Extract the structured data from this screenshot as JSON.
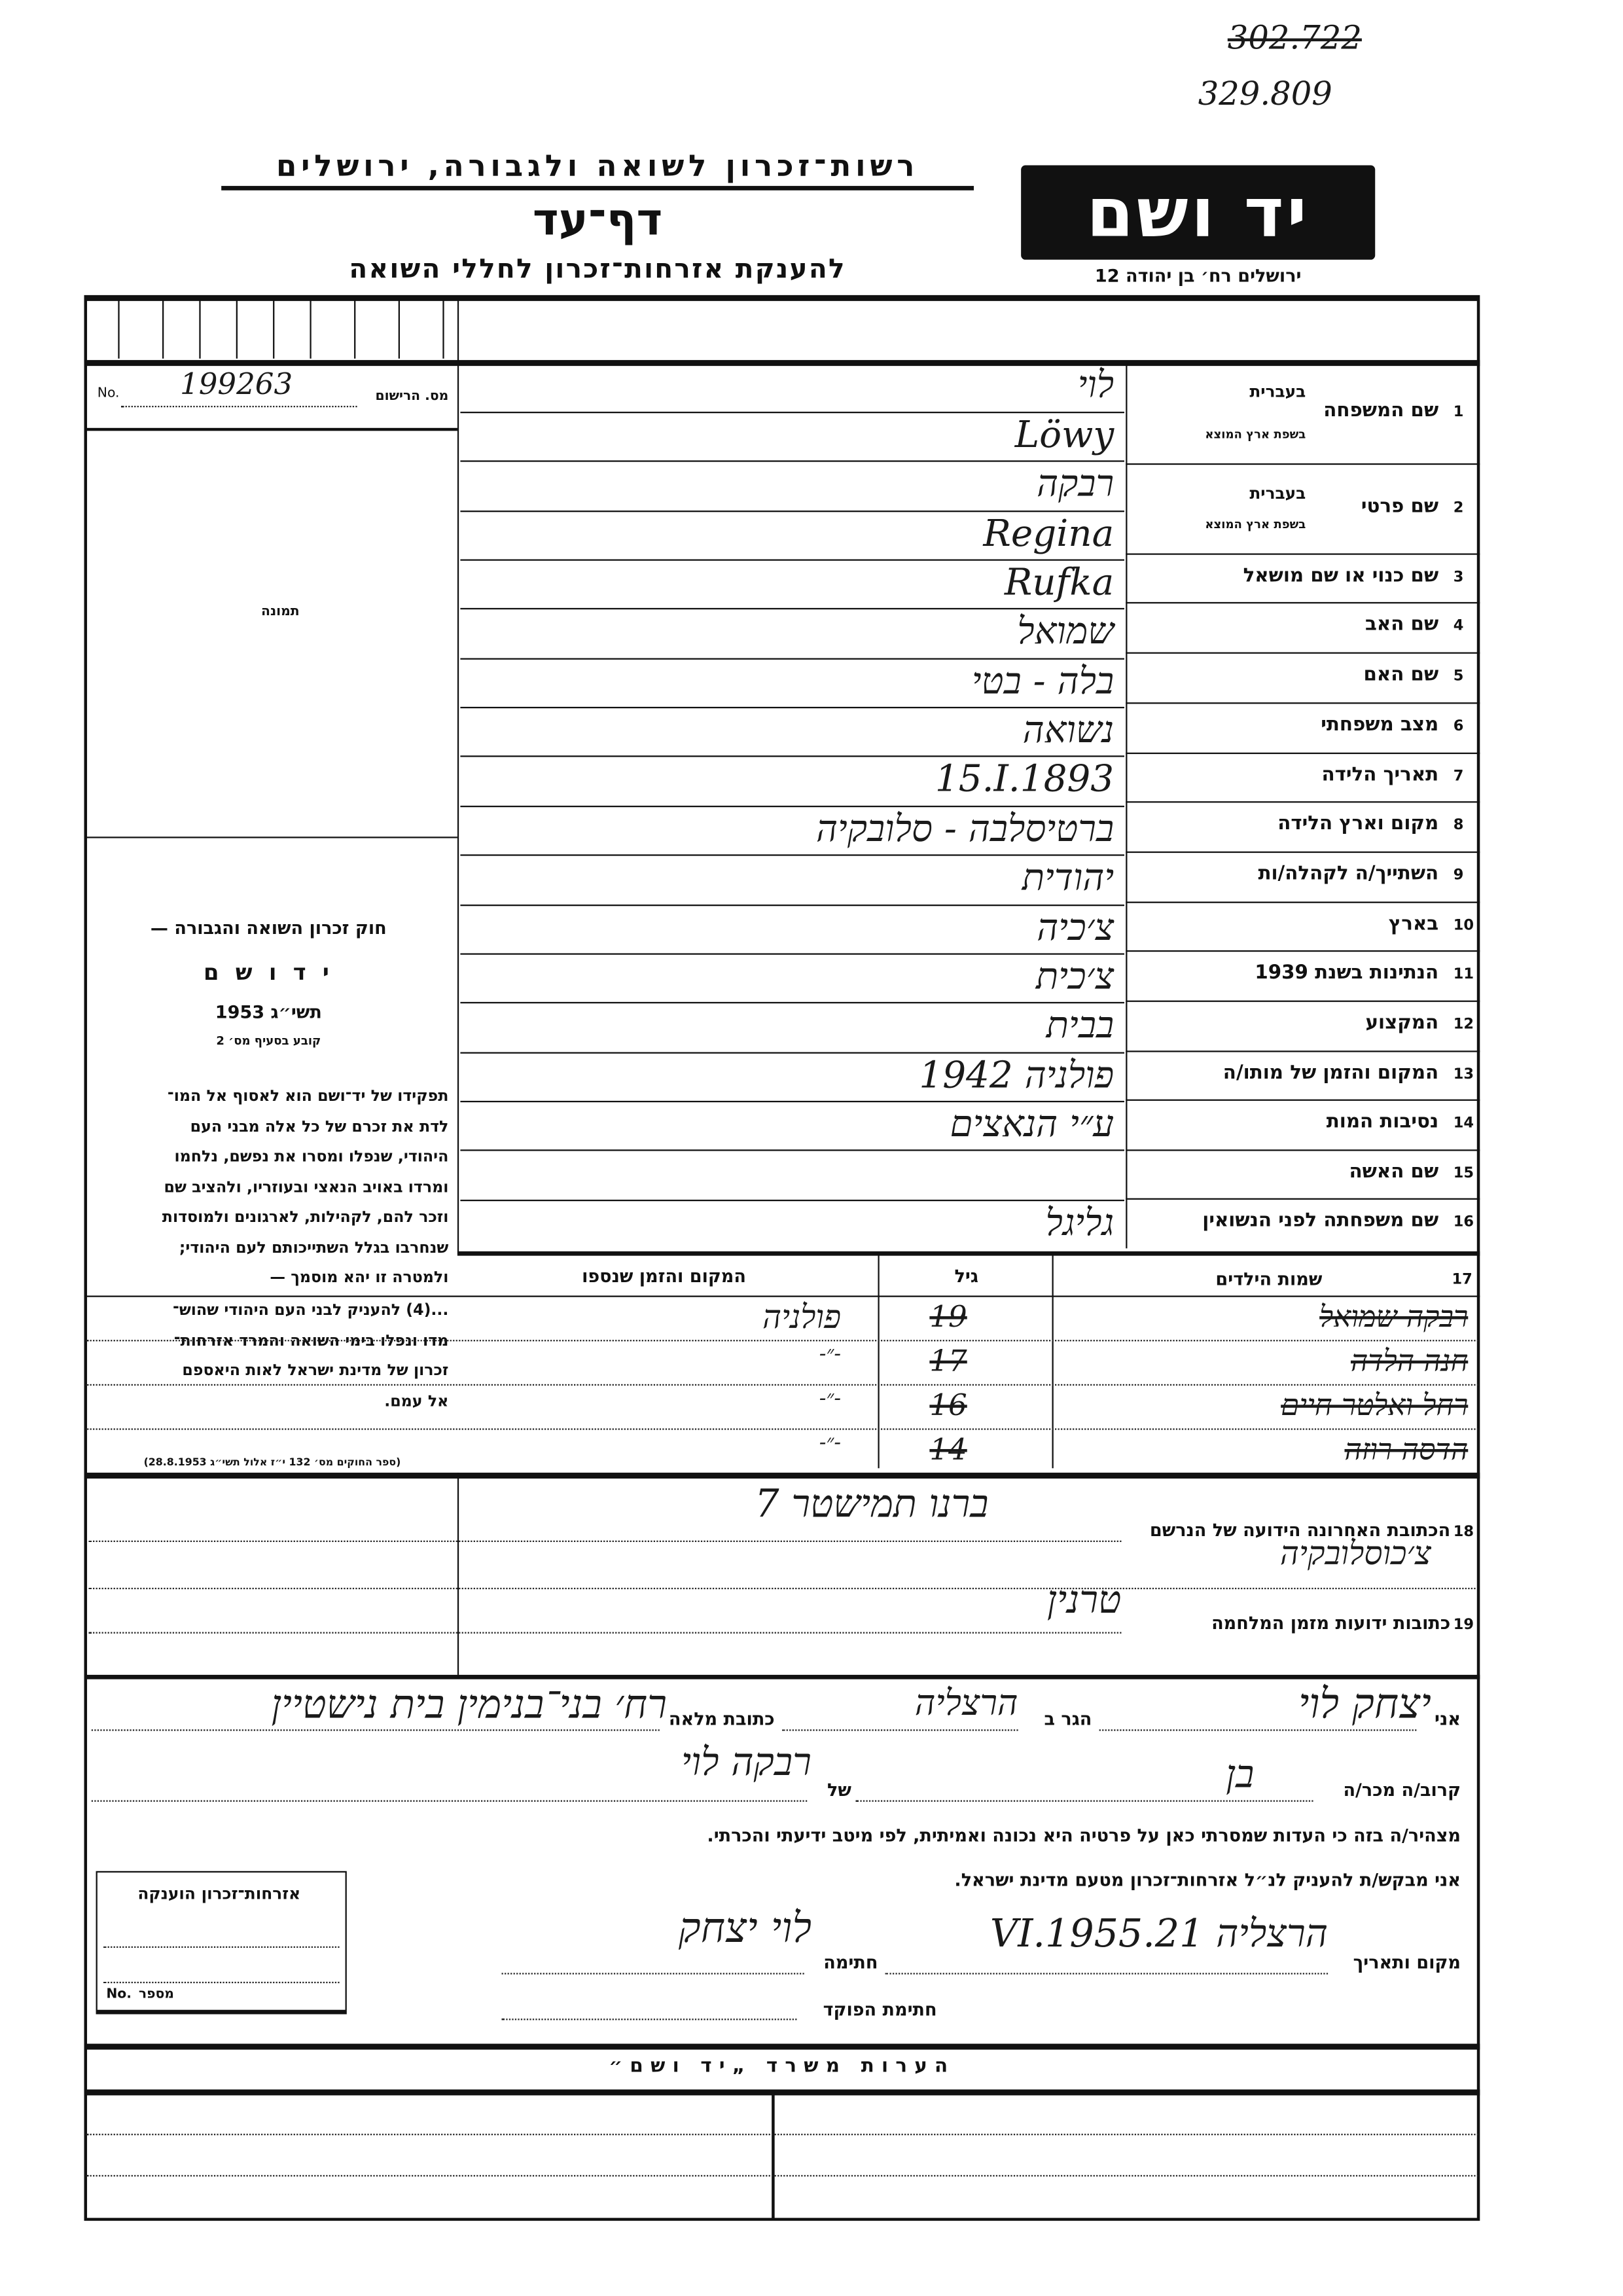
{
  "archive_numbers": {
    "crossed": "302.722",
    "current": "329.809"
  },
  "header": {
    "org": "רשות־זכרון לשואה ולגבורה, ירושלים",
    "title": "דף־עד",
    "subtitle": "להענקת אזרחות־זכרון לחללי השואה",
    "logo": "יד ושם",
    "address": "ירושלים רח׳ בן יהודה 12"
  },
  "registration": {
    "label": "מס. הרישום",
    "no_label": "No.",
    "value": "199263"
  },
  "photo_label": "תמונה",
  "law": {
    "title": "חוק זכרון השואה והגבורה —",
    "name": "י ד ו ש ם",
    "year": "תשי״ג 1953",
    "clause": "קובע בסעיף מס׳ 2",
    "para1": [
      "תפקידו של יד־ושם הוא לאסוף אל המו־",
      "לדת את זכרם של כל אלה מבני העם",
      "היהודי, שנפלו ומסרו את נפשם, נלחמו",
      "ומרדו באויב הנאצי ובעוזריו, ולהציב שם",
      "וזכר להם, לקהילות, לארגונים ולמוסדות",
      "שנחרבו בגלל השתייכותם לעם היהודי;",
      "ולמטרה זו יהא מוסמך —"
    ],
    "para2": [
      "...(4) להעניק לבני העם היהודי שהוש־",
      "מדו ונפלו בימי השואה והמרד אזרחות־",
      "זכרון של מדינת ישראל לאות היאספם",
      "אל עמם."
    ],
    "footer": "(ספר החוקים מס׳ 132 י״ז אלול תשי״ג 28.8.1953)"
  },
  "fields": [
    {
      "num": "1",
      "label": "שם המשפחה",
      "sub_top": "בעברית",
      "sub_bottom": "בשפת ארץ המוצא"
    },
    {
      "num": "2",
      "label": "שם פרטי",
      "sub_top": "בעברית",
      "sub_bottom": "בשפת ארץ המוצא"
    },
    {
      "num": "3",
      "label": "שם כנוי או שם מושאל"
    },
    {
      "num": "4",
      "label": "שם האב"
    },
    {
      "num": "5",
      "label": "שם האם"
    },
    {
      "num": "6",
      "label": "מצב משפחתי"
    },
    {
      "num": "7",
      "label": "תאריך הלידה"
    },
    {
      "num": "8",
      "label": "מקום וארץ הלידה"
    },
    {
      "num": "9",
      "label": "השתייך/ה לקהלה/ות"
    },
    {
      "num": "10",
      "label": "בארץ"
    },
    {
      "num": "11",
      "label": "הנתינות בשנת 1939"
    },
    {
      "num": "12",
      "label": "המקצוע"
    },
    {
      "num": "13",
      "label": "המקום והזמן של מותו/ה"
    },
    {
      "num": "14",
      "label": "נסיבות המות"
    },
    {
      "num": "15",
      "label": "שם האשה"
    },
    {
      "num": "16",
      "label": "שם משפחתה לפני הנשואין"
    }
  ],
  "entries": [
    "לוי",
    "Löwy",
    "רבקה",
    "Regina",
    "Rufka",
    "שמואל",
    "בלה - בטי",
    "נשואה",
    "15.I.1893",
    "ברטיסלבה - סלובקיה",
    "יהודית",
    "צ׳כיה",
    "צ׳כית",
    "בבית",
    "פולניה 1942",
    "ע״י הנאצים",
    "",
    "גליגל"
  ],
  "children": {
    "num": "17",
    "header": {
      "names": "שמות הילדים",
      "age": "גיל",
      "place": "המקום והזמן שנספו"
    },
    "rows": [
      {
        "name": "רבקה שמואל",
        "age": "19",
        "place": "פולניה"
      },
      {
        "name": "חנה הלדה",
        "age": "17",
        "place": "-״-"
      },
      {
        "name": "רחל ואלטר חיים",
        "age": "16",
        "place": "-״-"
      },
      {
        "name": "הדסה רוזה",
        "age": "14",
        "place": "-״-"
      }
    ]
  },
  "address": {
    "last_num": "18",
    "last_label": "הכתובת האחרונה הידועה של הנרשם",
    "last_value": "ברנו תמישטר 7",
    "last_value2": "צ׳כוסלובקיה",
    "war_num": "19",
    "war_label": "כתובות ידועות מזמן המלחמה",
    "war_value": "טרנין"
  },
  "declaration": {
    "i_label": "אני",
    "i_value": "יצחק לוי",
    "lives_label": "הגר ב",
    "lives_value": "הרצליה",
    "full_address_label": "כתובת מלאה",
    "full_address_value": "רח׳ בני־בנימין בית נישטיין",
    "relative_label": "קרוב/ה מכר/ה",
    "relative_value": "בן",
    "of_label": "של",
    "of_value": "רבקה לוי",
    "statement": "מצהיר/ה בזה כי העדות שמסרתי כאן על פרטיה היא נכונה ואמיתית, לפי מיטב ידיעתי והכרתי.",
    "request": "אני מבקש/ת להעניק לנ״ל אזרחות־זכרון מטעם מדינת ישראל.",
    "place_date_label": "מקום ותאריך",
    "place_date_value": "הרצליה 21.VI.1955",
    "signature_label": "חתימה",
    "signature_value": "לוי יצחק",
    "officer_label": "חתימת הפוקד"
  },
  "granted_box": {
    "title": "אזרחות־זכרון הוענקה",
    "number_label": "מספר",
    "no_label": "No."
  },
  "remarks": {
    "title": "הערות משרד „יד ושם״"
  }
}
